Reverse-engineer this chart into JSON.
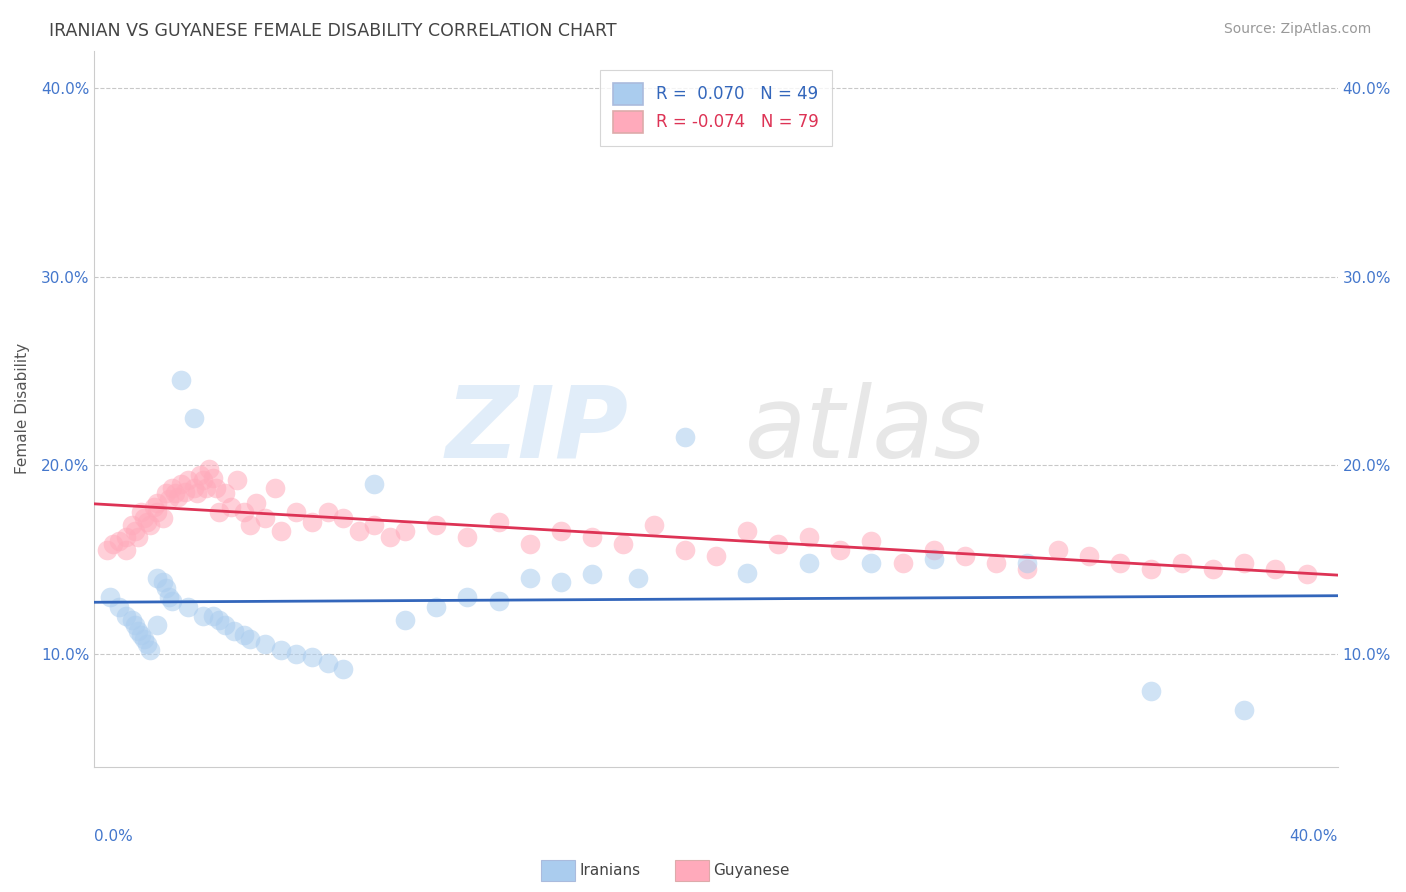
{
  "title": "IRANIAN VS GUYANESE FEMALE DISABILITY CORRELATION CHART",
  "source": "Source: ZipAtlas.com",
  "ylabel": "Female Disability",
  "xmin": 0.0,
  "xmax": 0.4,
  "ymin": 0.04,
  "ymax": 0.42,
  "yticks": [
    0.1,
    0.2,
    0.3,
    0.4
  ],
  "ytick_labels": [
    "10.0%",
    "20.0%",
    "30.0%",
    "40.0%"
  ],
  "iranian_color": "#AACCEE",
  "guyanese_color": "#FFAABB",
  "iranian_line_color": "#3366BB",
  "guyanese_line_color": "#DD3355",
  "iranian_x": [
    0.005,
    0.008,
    0.01,
    0.012,
    0.013,
    0.014,
    0.015,
    0.016,
    0.017,
    0.018,
    0.02,
    0.02,
    0.022,
    0.023,
    0.024,
    0.025,
    0.028,
    0.03,
    0.032,
    0.035,
    0.038,
    0.04,
    0.042,
    0.045,
    0.048,
    0.05,
    0.055,
    0.06,
    0.065,
    0.07,
    0.075,
    0.08,
    0.09,
    0.1,
    0.11,
    0.12,
    0.13,
    0.14,
    0.15,
    0.16,
    0.175,
    0.19,
    0.21,
    0.23,
    0.25,
    0.27,
    0.3,
    0.34,
    0.37
  ],
  "iranian_y": [
    0.13,
    0.125,
    0.12,
    0.118,
    0.115,
    0.112,
    0.11,
    0.108,
    0.105,
    0.102,
    0.14,
    0.115,
    0.138,
    0.135,
    0.13,
    0.128,
    0.245,
    0.125,
    0.225,
    0.12,
    0.12,
    0.118,
    0.115,
    0.112,
    0.11,
    0.108,
    0.105,
    0.102,
    0.1,
    0.098,
    0.095,
    0.092,
    0.19,
    0.118,
    0.125,
    0.13,
    0.128,
    0.14,
    0.138,
    0.142,
    0.14,
    0.215,
    0.143,
    0.148,
    0.148,
    0.15,
    0.148,
    0.08,
    0.07
  ],
  "guyanese_x": [
    0.004,
    0.006,
    0.008,
    0.01,
    0.01,
    0.012,
    0.013,
    0.014,
    0.015,
    0.016,
    0.017,
    0.018,
    0.019,
    0.02,
    0.02,
    0.022,
    0.023,
    0.024,
    0.025,
    0.026,
    0.027,
    0.028,
    0.029,
    0.03,
    0.032,
    0.033,
    0.034,
    0.035,
    0.036,
    0.037,
    0.038,
    0.039,
    0.04,
    0.042,
    0.044,
    0.046,
    0.048,
    0.05,
    0.052,
    0.055,
    0.058,
    0.06,
    0.065,
    0.07,
    0.075,
    0.08,
    0.085,
    0.09,
    0.095,
    0.1,
    0.11,
    0.12,
    0.13,
    0.14,
    0.15,
    0.16,
    0.17,
    0.18,
    0.19,
    0.2,
    0.21,
    0.22,
    0.23,
    0.24,
    0.25,
    0.26,
    0.27,
    0.28,
    0.29,
    0.3,
    0.31,
    0.32,
    0.33,
    0.34,
    0.35,
    0.36,
    0.37,
    0.38,
    0.39
  ],
  "guyanese_y": [
    0.155,
    0.158,
    0.16,
    0.162,
    0.155,
    0.168,
    0.165,
    0.162,
    0.175,
    0.172,
    0.17,
    0.168,
    0.178,
    0.18,
    0.175,
    0.172,
    0.185,
    0.182,
    0.188,
    0.185,
    0.183,
    0.19,
    0.186,
    0.192,
    0.188,
    0.185,
    0.195,
    0.192,
    0.188,
    0.198,
    0.193,
    0.188,
    0.175,
    0.185,
    0.178,
    0.192,
    0.175,
    0.168,
    0.18,
    0.172,
    0.188,
    0.165,
    0.175,
    0.17,
    0.175,
    0.172,
    0.165,
    0.168,
    0.162,
    0.165,
    0.168,
    0.162,
    0.17,
    0.158,
    0.165,
    0.162,
    0.158,
    0.168,
    0.155,
    0.152,
    0.165,
    0.158,
    0.162,
    0.155,
    0.16,
    0.148,
    0.155,
    0.152,
    0.148,
    0.145,
    0.155,
    0.152,
    0.148,
    0.145,
    0.148,
    0.145,
    0.148,
    0.145,
    0.142
  ]
}
